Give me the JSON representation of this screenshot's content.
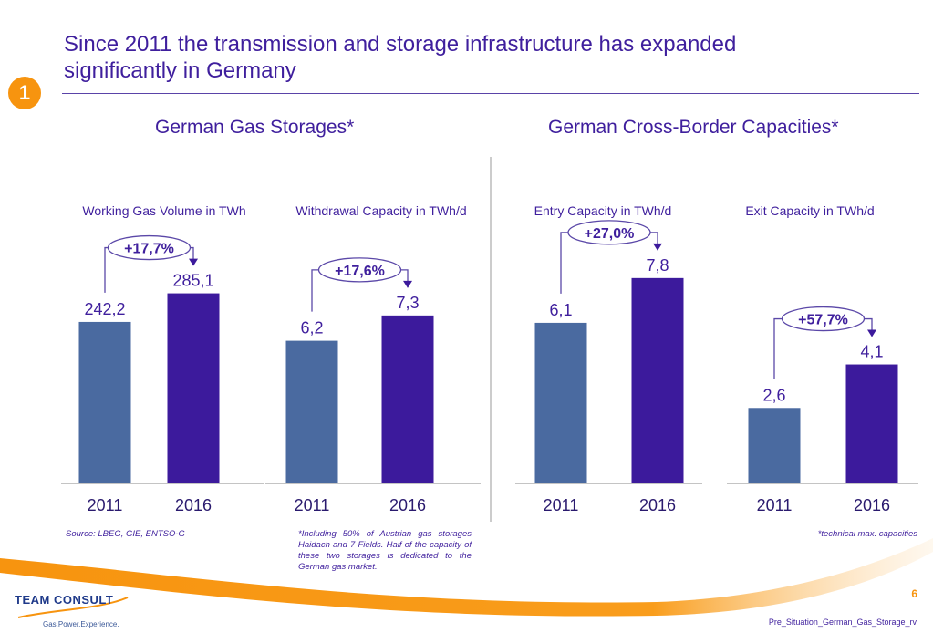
{
  "badge": "1",
  "title": "Since 2011 the transmission and storage infrastructure has expanded significantly in Germany",
  "sections": [
    "German Gas Storages*",
    "German Cross-Border Capacities*"
  ],
  "colors": {
    "bar_2011": "#4a6aa0",
    "bar_2016": "#3c1a9c",
    "text": "#3f1f9d",
    "accent": "#f7940f"
  },
  "chart_data": [
    {
      "type": "bar",
      "title": "Working Gas Volume in TWh",
      "categories": [
        "2011",
        "2016"
      ],
      "values": [
        242.2,
        285.1
      ],
      "value_labels": [
        "242,2",
        "285,1"
      ],
      "change_label": "+17,7%",
      "ylim": [
        0,
        383
      ]
    },
    {
      "type": "bar",
      "title": "Withdrawal Capacity in TWh/d",
      "categories": [
        "2011",
        "2016"
      ],
      "values": [
        6.2,
        7.3
      ],
      "value_labels": [
        "6,2",
        "7,3"
      ],
      "change_label": "+17,6%",
      "ylim": [
        0,
        11.1
      ]
    },
    {
      "type": "bar",
      "title": "Entry Capacity in TWh/d",
      "categories": [
        "2011",
        "2016"
      ],
      "values": [
        6.1,
        7.8
      ],
      "value_labels": [
        "6,1",
        "7,8"
      ],
      "change_label": "+27,0%",
      "ylim": [
        0,
        9.7
      ]
    },
    {
      "type": "bar",
      "title": "Exit Capacity in TWh/d",
      "categories": [
        "2011",
        "2016"
      ],
      "values": [
        2.6,
        4.1
      ],
      "value_labels": [
        "2,6",
        "4,1"
      ],
      "change_label": "+57,7%",
      "ylim": [
        0,
        8.8
      ]
    }
  ],
  "footer": {
    "source": "Source: LBEG, GIE, ENTSO-G",
    "note": "*Including 50% of Austrian gas storages Haidach and 7 Fields. Half of the capacity of these two storages is dedicated to the German gas market.",
    "tech_note": "*technical max. capacities",
    "logo": "TEAM CONSULT",
    "tagline": "Gas.Power.Experience.",
    "page": "6",
    "filename": "Pre_Situation_German_Gas_Storage_rv"
  }
}
